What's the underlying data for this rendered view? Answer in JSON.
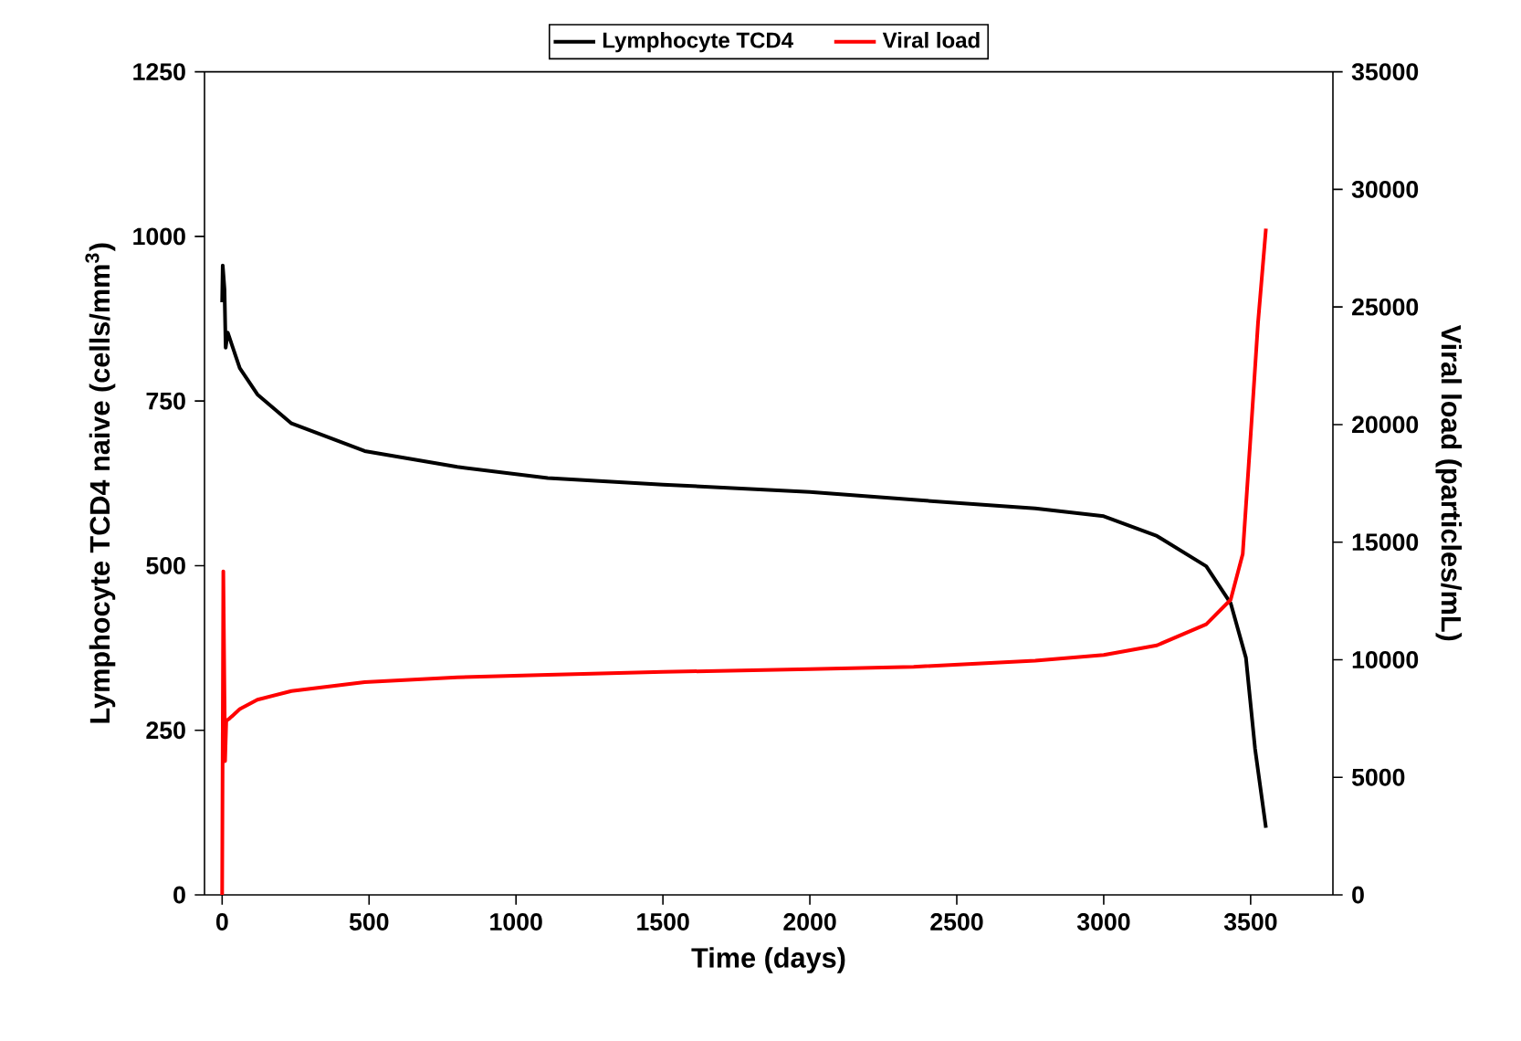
{
  "chart_data": {
    "type": "line",
    "xlabel": "Time (days)",
    "ylabel": "Lymphocyte TCD4 naive (cells/mm$^{3}$)",
    "y2label": "Viral load (particles/mL)",
    "xlim": [
      -60,
      3780
    ],
    "ylim": [
      0,
      1250
    ],
    "y2lim": [
      0,
      35000
    ],
    "xticks": [
      0,
      500,
      1000,
      1500,
      2000,
      2500,
      3000,
      3500
    ],
    "yticks": [
      0,
      250,
      500,
      750,
      1000,
      1250
    ],
    "y2ticks": [
      0,
      5000,
      10000,
      15000,
      20000,
      25000,
      30000,
      35000
    ],
    "legend": "top",
    "grid": false,
    "marker": "none",
    "line_style": "solid",
    "series": [
      {
        "name": "Lymphocyte TCD4",
        "color": "#000000",
        "x": [
          0,
          2,
          8,
          12,
          19,
          60,
          120,
          236,
          485,
          800,
          1108,
          1500,
          2000,
          2353,
          2767,
          3000,
          3181,
          3349,
          3432,
          3484,
          3515,
          3552
        ],
        "values": [
          900,
          956,
          920,
          831,
          854,
          800,
          760,
          716,
          674,
          650,
          633,
          623,
          612,
          600,
          587,
          575,
          545,
          499,
          443,
          360,
          222,
          102
        ]
      },
      {
        "name": "Viral load",
        "color": "#ff0000",
        "axis": "y2",
        "x": [
          0,
          4,
          10,
          14,
          25,
          60,
          120,
          236,
          485,
          800,
          1108,
          1500,
          2000,
          2353,
          2767,
          3000,
          3181,
          3349,
          3432,
          3473,
          3498,
          3525,
          3552
        ],
        "values": [
          0,
          13760,
          5690,
          7400,
          7500,
          7900,
          8300,
          8670,
          9050,
          9250,
          9360,
          9480,
          9600,
          9700,
          9960,
          10200,
          10610,
          11510,
          12550,
          14490,
          19150,
          24310,
          28330
        ]
      }
    ]
  }
}
